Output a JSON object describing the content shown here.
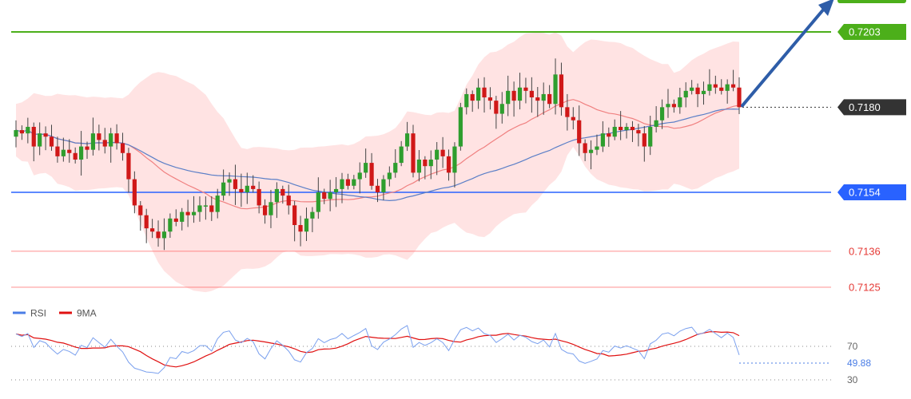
{
  "chart_data": {
    "type": "candlestick",
    "price_levels": [
      {
        "value": 0.7203,
        "label": "0.7203",
        "kind": "target",
        "color": "#4caf1a"
      },
      {
        "value": 0.718,
        "label": "0.7180",
        "kind": "last-price",
        "color": "#333333"
      },
      {
        "value": 0.7154,
        "label": "0.7154",
        "kind": "support",
        "color": "#2962ff"
      },
      {
        "value": 0.7136,
        "label": "0.7136",
        "kind": "support",
        "color": "#ff5a5a"
      },
      {
        "value": 0.7125,
        "label": "0.7125",
        "kind": "support",
        "color": "#ff5a5a"
      }
    ],
    "price_range": [
      0.7107,
      0.7222
    ],
    "close": [
      0.7173,
      0.7172,
      0.7174,
      0.7168,
      0.7172,
      0.7171,
      0.7168,
      0.7165,
      0.7167,
      0.7166,
      0.7164,
      0.7168,
      0.7167,
      0.7172,
      0.717,
      0.7168,
      0.7172,
      0.7169,
      0.7166,
      0.7158,
      0.715,
      0.7147,
      0.7143,
      0.7142,
      0.714,
      0.7142,
      0.7146,
      0.7145,
      0.7148,
      0.7147,
      0.7148,
      0.715,
      0.715,
      0.7148,
      0.7153,
      0.7157,
      0.7158,
      0.7155,
      0.7154,
      0.7156,
      0.7155,
      0.715,
      0.7147,
      0.7151,
      0.7155,
      0.7153,
      0.715,
      0.7144,
      0.7142,
      0.7146,
      0.7148,
      0.7154,
      0.7152,
      0.7154,
      0.7155,
      0.7158,
      0.7156,
      0.7158,
      0.716,
      0.7163,
      0.7156,
      0.7154,
      0.7158,
      0.716,
      0.7163,
      0.7168,
      0.7172,
      0.716,
      0.7164,
      0.7162,
      0.7164,
      0.7167,
      0.7165,
      0.716,
      0.7168,
      0.718,
      0.7184,
      0.7182,
      0.7186,
      0.7183,
      0.7182,
      0.7178,
      0.7181,
      0.7185,
      0.7182,
      0.7186,
      0.7185,
      0.7183,
      0.7182,
      0.7184,
      0.7181,
      0.719,
      0.718,
      0.7177,
      0.7176,
      0.7169,
      0.7166,
      0.7167,
      0.7168,
      0.7172,
      0.7171,
      0.7174,
      0.7173,
      0.7174,
      0.7173,
      0.7172,
      0.7168,
      0.7174,
      0.7176,
      0.718,
      0.7181,
      0.718,
      0.7183,
      0.7185,
      0.7186,
      0.7184,
      0.7185,
      0.7187,
      0.7186,
      0.7185,
      0.7187,
      0.7186,
      0.718
    ],
    "direction_arrow": {
      "from_price": 0.718,
      "to_price": 0.7222
    },
    "indicator": {
      "legend": [
        {
          "name": "RSI",
          "color": "#4a7de6"
        },
        {
          "name": "9MA",
          "color": "#e01010"
        }
      ],
      "levels": [
        {
          "value": 70,
          "label": "70"
        },
        {
          "value": 30,
          "label": "30"
        }
      ],
      "current_value": 49.88,
      "current_label": "49.88"
    }
  }
}
